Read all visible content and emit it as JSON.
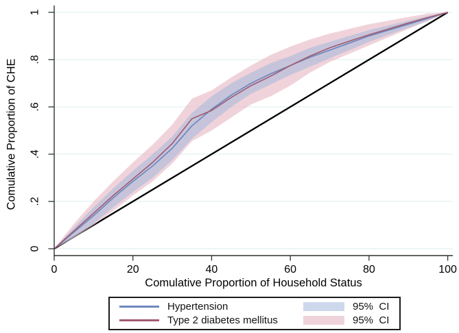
{
  "chart_data": {
    "type": "line",
    "title": "",
    "xlabel": "Comulative Proportion of Household Status",
    "ylabel": "Comulative Proportion of CHE",
    "xlim": [
      0,
      100
    ],
    "ylim": [
      0,
      1
    ],
    "x_tick_labels": [
      "0",
      "20",
      "40",
      "60",
      "80",
      "100"
    ],
    "x_tick_values": [
      0,
      20,
      40,
      60,
      80,
      100
    ],
    "y_tick_labels": [
      "0",
      ".2",
      ".4",
      ".6",
      ".8",
      "1"
    ],
    "y_tick_values": [
      0,
      0.2,
      0.4,
      0.6,
      0.8,
      1
    ],
    "grid": "horizontal-only",
    "legend_position": "bottom-center",
    "x": [
      0,
      5,
      10,
      15,
      20,
      25,
      30,
      35,
      40,
      45,
      50,
      55,
      60,
      65,
      70,
      75,
      80,
      85,
      90,
      95,
      100
    ],
    "series": [
      {
        "name": "Hypertension",
        "ci_label": "95%  CI",
        "line_color": "#6d88be",
        "band_fill": "#a4b8dc",
        "band_opacity": 0.55,
        "values": [
          0,
          0.07,
          0.14,
          0.215,
          0.285,
          0.35,
          0.425,
          0.52,
          0.59,
          0.65,
          0.7,
          0.74,
          0.775,
          0.81,
          0.84,
          0.87,
          0.9,
          0.925,
          0.95,
          0.975,
          1
        ],
        "ci_upper": [
          0,
          0.09,
          0.175,
          0.255,
          0.33,
          0.4,
          0.475,
          0.575,
          0.645,
          0.7,
          0.745,
          0.785,
          0.815,
          0.85,
          0.875,
          0.9,
          0.925,
          0.945,
          0.965,
          0.985,
          1
        ],
        "ci_lower": [
          0,
          0.05,
          0.105,
          0.175,
          0.24,
          0.3,
          0.375,
          0.465,
          0.535,
          0.6,
          0.655,
          0.695,
          0.735,
          0.77,
          0.805,
          0.84,
          0.875,
          0.905,
          0.935,
          0.965,
          1
        ]
      },
      {
        "name": "Type 2 diabetes mellitus",
        "ci_label": "95%  CI",
        "line_color": "#a25c72",
        "band_fill": "#e6b6c1",
        "band_opacity": 0.6,
        "values": [
          0,
          0.075,
          0.15,
          0.225,
          0.295,
          0.365,
          0.445,
          0.55,
          0.585,
          0.64,
          0.69,
          0.73,
          0.775,
          0.815,
          0.85,
          0.878,
          0.905,
          0.93,
          0.955,
          0.978,
          1
        ],
        "ci_upper": [
          0,
          0.105,
          0.2,
          0.285,
          0.365,
          0.44,
          0.525,
          0.635,
          0.67,
          0.725,
          0.775,
          0.82,
          0.855,
          0.885,
          0.91,
          0.93,
          0.95,
          0.965,
          0.98,
          0.995,
          1
        ],
        "ci_lower": [
          0,
          0.045,
          0.1,
          0.16,
          0.225,
          0.285,
          0.36,
          0.455,
          0.5,
          0.555,
          0.61,
          0.645,
          0.69,
          0.745,
          0.79,
          0.825,
          0.86,
          0.895,
          0.93,
          0.963,
          1
        ]
      }
    ],
    "reference_line": {
      "name": "line-of-equality",
      "color": "#000000",
      "from": [
        0,
        0
      ],
      "to": [
        100,
        1
      ]
    },
    "colors": {
      "grid": "#e2f0f0",
      "axis": "#303030",
      "text": "#000000",
      "legend_border": "#1a1a1a",
      "background": "#ffffff"
    }
  }
}
